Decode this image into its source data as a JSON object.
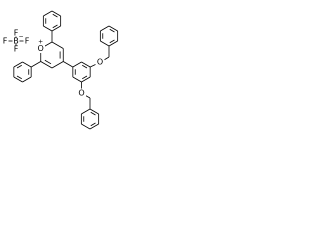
{
  "tetrafluoroborate": {
    "fluorine_top": "F",
    "fluorine_left": "F",
    "boron": "B",
    "charge": "−",
    "fluorine_right": "F",
    "fluorine_bottom": "F"
  },
  "pyrylium": {
    "oxygen": "O",
    "charge": "+"
  },
  "ether_oxygens": [
    "O",
    "O"
  ]
}
